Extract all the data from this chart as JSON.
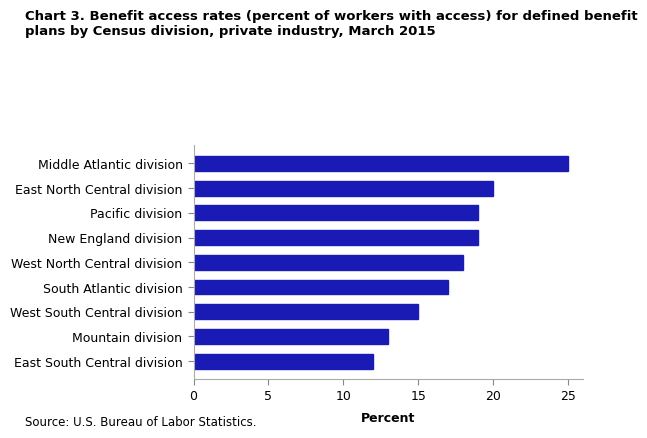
{
  "title_line1": "Chart 3. Benefit access rates (percent of workers with access) for defined benefit",
  "title_line2": "plans by Census division, private industry, March 2015",
  "categories": [
    "East South Central division",
    "Mountain division",
    "West South Central division",
    "South Atlantic division",
    "West North Central division",
    "New England division",
    "Pacific division",
    "East North Central division",
    "Middle Atlantic division"
  ],
  "values": [
    12,
    13,
    15,
    17,
    18,
    19,
    19,
    20,
    25
  ],
  "bar_color": "#1a1ab5",
  "xlabel": "Percent",
  "xlim": [
    0,
    26
  ],
  "xticks": [
    0,
    5,
    10,
    15,
    20,
    25
  ],
  "source": "Source: U.S. Bureau of Labor Statistics.",
  "title_fontsize": 9.5,
  "label_fontsize": 9,
  "tick_fontsize": 9,
  "source_fontsize": 8.5,
  "bar_height": 0.6
}
